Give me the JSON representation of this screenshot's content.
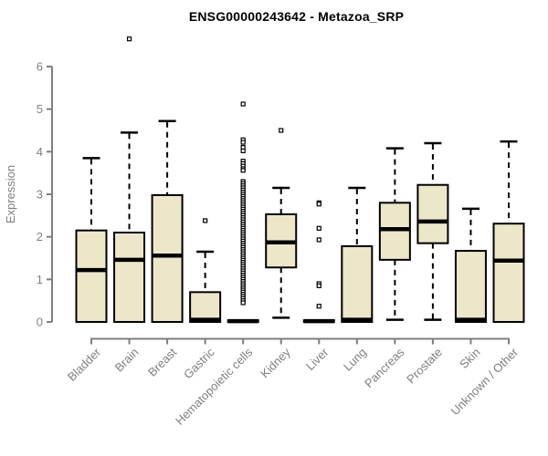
{
  "chart_data": {
    "type": "boxplot",
    "title": "ENSG00000243642 - Metazoa_SRP",
    "ylabel": "Expression",
    "xlabel": "",
    "ylim": [
      0,
      6
    ],
    "yticks": [
      0,
      1,
      2,
      3,
      4,
      5,
      6
    ],
    "grid": false,
    "legend": null,
    "colors": {
      "box_fill": "#ede7c9",
      "box_border": "#000000",
      "median": "#000000",
      "whisker": "#000000",
      "outlier_stroke": "#000000",
      "axis": "#7f7f7f",
      "title_color": "#000000",
      "background": "#ffffff"
    },
    "categories": [
      "Bladder",
      "Brain",
      "Breast",
      "Gastric",
      "Hematopoietic cells",
      "Kidney",
      "Liver",
      "Lung",
      "Pancreas",
      "Prostate",
      "Skin",
      "Unknown / Other"
    ],
    "boxes": [
      {
        "category": "Bladder",
        "whisker_low": 0,
        "q1": 0,
        "median": 1.22,
        "q3": 2.15,
        "whisker_high": 3.85,
        "outliers": []
      },
      {
        "category": "Brain",
        "whisker_low": 0,
        "q1": 0,
        "median": 1.46,
        "q3": 2.1,
        "whisker_high": 4.45,
        "outliers": [
          6.65
        ]
      },
      {
        "category": "Breast",
        "whisker_low": 0,
        "q1": 0,
        "median": 1.56,
        "q3": 2.98,
        "whisker_high": 4.72,
        "outliers": []
      },
      {
        "category": "Gastric",
        "whisker_low": 0,
        "q1": 0,
        "median": 0.05,
        "q3": 0.7,
        "whisker_high": 1.65,
        "outliers": [
          2.38
        ]
      },
      {
        "category": "Hematopoietic cells",
        "whisker_low": 0,
        "q1": 0,
        "median": 0.02,
        "q3": 0.04,
        "whisker_high": 0.05,
        "outliers": [
          5.12,
          4.28,
          4.22,
          4.1,
          4.02,
          3.78,
          3.72,
          3.66,
          3.6,
          3.56,
          3.3,
          3.25,
          3.2,
          3.15,
          3.1,
          3.05,
          3.0,
          2.95,
          2.9,
          2.85,
          2.8,
          2.75,
          2.7,
          2.65,
          2.6,
          2.55,
          2.5,
          2.45,
          2.4,
          2.35,
          2.3,
          2.25,
          2.2,
          2.15,
          2.1,
          2.05,
          2.0,
          1.95,
          1.9,
          1.85,
          1.8,
          1.75,
          1.7,
          1.65,
          1.6,
          1.55,
          1.5,
          1.45,
          1.4,
          1.35,
          1.3,
          1.25,
          1.2,
          1.15,
          1.1,
          1.05,
          1.0,
          0.95,
          0.9,
          0.85,
          0.8,
          0.75,
          0.7,
          0.65,
          0.6,
          0.55,
          0.5,
          0.45
        ]
      },
      {
        "category": "Kidney",
        "whisker_low": 0.1,
        "q1": 1.28,
        "median": 1.87,
        "q3": 2.53,
        "whisker_high": 3.15,
        "outliers": [
          4.5
        ]
      },
      {
        "category": "Liver",
        "whisker_low": 0,
        "q1": 0,
        "median": 0.02,
        "q3": 0.04,
        "whisker_high": 0.05,
        "outliers": [
          2.8,
          2.77,
          2.2,
          1.93,
          0.9,
          0.85,
          0.37
        ]
      },
      {
        "category": "Lung",
        "whisker_low": 0,
        "q1": 0,
        "median": 0.05,
        "q3": 1.78,
        "whisker_high": 3.15,
        "outliers": []
      },
      {
        "category": "Pancreas",
        "whisker_low": 0.05,
        "q1": 1.46,
        "median": 2.18,
        "q3": 2.8,
        "whisker_high": 4.08,
        "outliers": []
      },
      {
        "category": "Prostate",
        "whisker_low": 0.05,
        "q1": 1.85,
        "median": 2.36,
        "q3": 3.22,
        "whisker_high": 4.2,
        "outliers": []
      },
      {
        "category": "Skin",
        "whisker_low": 0,
        "q1": 0,
        "median": 0.05,
        "q3": 1.67,
        "whisker_high": 2.66,
        "outliers": []
      },
      {
        "category": "Unknown / Other",
        "whisker_low": 0,
        "q1": 0,
        "median": 1.44,
        "q3": 2.31,
        "whisker_high": 4.24,
        "outliers": []
      }
    ]
  }
}
